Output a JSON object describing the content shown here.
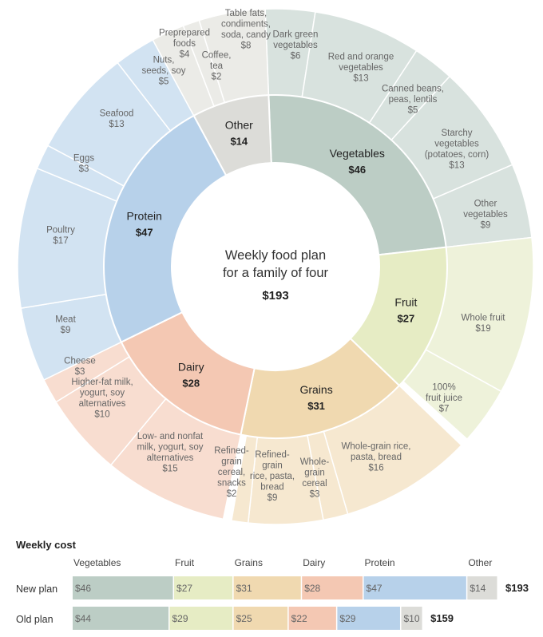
{
  "center": {
    "title_line1": "Weekly food plan",
    "title_line2": "for a family of four",
    "total": "$193"
  },
  "colors": {
    "Vegetables": {
      "inner": "#bccdc5",
      "outer": "#d8e2de"
    },
    "Fruit": {
      "inner": "#e6ecc4",
      "outer": "#eef2da"
    },
    "Grains": {
      "inner": "#f0d9b0",
      "outer": "#f6e8d0"
    },
    "Dairy": {
      "inner": "#f4c8b3",
      "outer": "#f8ddd0"
    },
    "Protein": {
      "inner": "#b7d1ea",
      "outer": "#d2e3f2"
    },
    "Other": {
      "inner": "#dcdcd8",
      "outer": "#ebebe7"
    }
  },
  "chart_data": [
    {
      "type": "pie",
      "subtype": "sunburst",
      "title": "Weekly food plan for a family of four",
      "total": 193,
      "categories": [
        {
          "name": "Vegetables",
          "label": "$46",
          "value": 46,
          "children": [
            {
              "name": "Dark green vegetables",
              "value": 6,
              "label": "$6"
            },
            {
              "name": "Red and orange vegetables",
              "value": 13,
              "label": "$13"
            },
            {
              "name": "Canned beans, peas, lentils",
              "value": 5,
              "label": "$5"
            },
            {
              "name": "Starchy vegetables (potatoes, corn)",
              "value": 13,
              "label": "$13"
            },
            {
              "name": "Other vegetables",
              "value": 9,
              "label": "$9"
            }
          ]
        },
        {
          "name": "Fruit",
          "label": "$27",
          "value": 27,
          "children": [
            {
              "name": "Whole fruit",
              "value": 19,
              "label": "$19"
            },
            {
              "name": "100% fruit juice",
              "value": 7,
              "label": "$7"
            }
          ]
        },
        {
          "name": "Grains",
          "label": "$31",
          "value": 31,
          "children": [
            {
              "name": "Whole-grain rice, pasta, bread",
              "value": 16,
              "label": "$16"
            },
            {
              "name": "Whole-grain cereal",
              "value": 3,
              "label": "$3"
            },
            {
              "name": "Refined-grain rice, pasta, bread",
              "value": 9,
              "label": "$9"
            },
            {
              "name": "Refined-grain cereal, snacks",
              "value": 2,
              "label": "$2"
            }
          ]
        },
        {
          "name": "Dairy",
          "label": "$28",
          "value": 28,
          "children": [
            {
              "name": "Low- and nonfat milk, yogurt, soy alternatives",
              "value": 15,
              "label": "$15"
            },
            {
              "name": "Higher-fat milk, yogurt, soy alternatives",
              "value": 10,
              "label": "$10"
            },
            {
              "name": "Cheese",
              "value": 3,
              "label": "$3"
            }
          ]
        },
        {
          "name": "Protein",
          "label": "$47",
          "value": 47,
          "children": [
            {
              "name": "Meat",
              "value": 9,
              "label": "$9"
            },
            {
              "name": "Poultry",
              "value": 17,
              "label": "$17"
            },
            {
              "name": "Eggs",
              "value": 3,
              "label": "$3"
            },
            {
              "name": "Seafood",
              "value": 13,
              "label": "$13"
            },
            {
              "name": "Nuts, seeds, soy",
              "value": 5,
              "label": "$5"
            }
          ]
        },
        {
          "name": "Other",
          "label": "$14",
          "value": 14,
          "children": [
            {
              "name": "Prepreared foods",
              "value": 4,
              "label": "$4"
            },
            {
              "name": "Coffee, tea",
              "value": 2,
              "label": "$2"
            },
            {
              "name": "Table fats, condiments, soda, candy",
              "value": 8,
              "label": "$8"
            }
          ]
        }
      ]
    },
    {
      "type": "bar",
      "subtype": "stacked-horizontal",
      "title": "Weekly cost",
      "categories": [
        "Vegetables",
        "Fruit",
        "Grains",
        "Dairy",
        "Protein",
        "Other"
      ],
      "series": [
        {
          "name": "New plan",
          "values": [
            46,
            27,
            31,
            28,
            47,
            14
          ],
          "labels": [
            "$46",
            "$27",
            "$31",
            "$28",
            "$47",
            "$14"
          ],
          "total_label": "$193"
        },
        {
          "name": "Old plan",
          "values": [
            44,
            29,
            25,
            22,
            29,
            10
          ],
          "labels": [
            "$44",
            "$29",
            "$25",
            "$22",
            "$29",
            "$10"
          ],
          "total_label": "$159"
        }
      ]
    }
  ]
}
